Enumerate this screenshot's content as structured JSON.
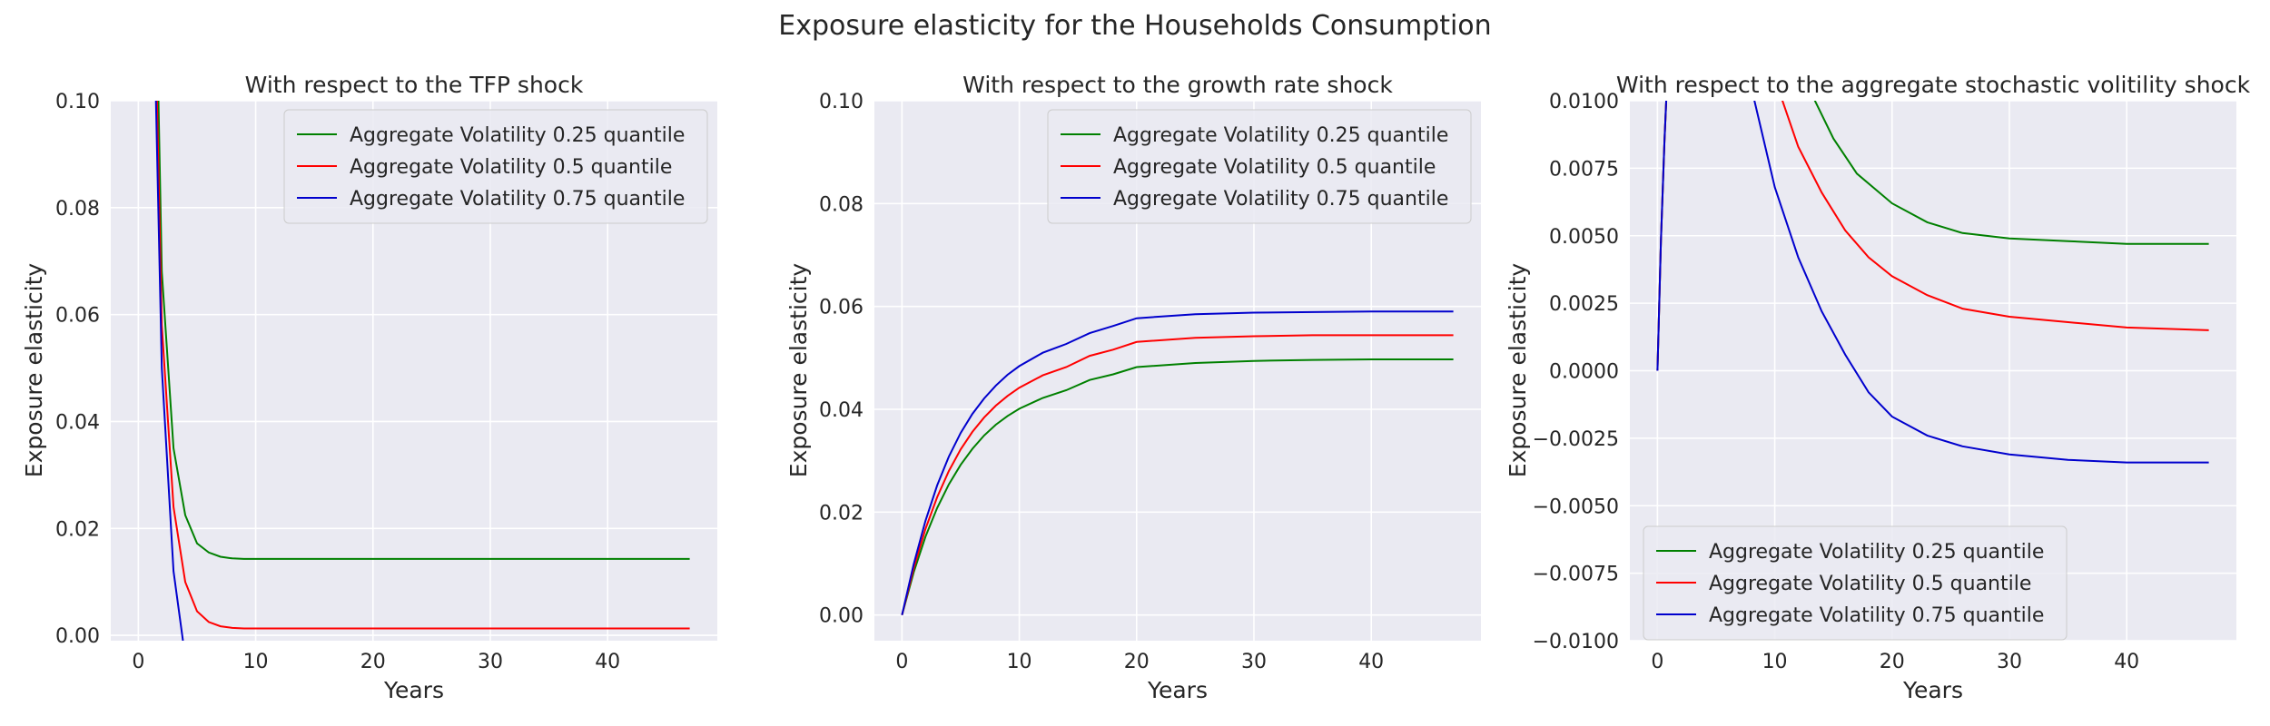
{
  "figure": {
    "title": "Exposure elasticity for the Households Consumption"
  },
  "chart_data": [
    {
      "type": "line",
      "title": "With respect to the TFP shock",
      "xlabel": "Years",
      "ylabel": "Exposure elasticity",
      "xlim": [
        -2.35,
        49.35
      ],
      "ylim": [
        -0.001,
        0.1
      ],
      "xticks": [
        0,
        10,
        20,
        30,
        40
      ],
      "yticks": [
        0.0,
        0.02,
        0.04,
        0.06,
        0.08,
        0.1
      ],
      "ytick_labels": [
        "0.00",
        "0.02",
        "0.04",
        "0.06",
        "0.08",
        "0.10"
      ],
      "grid": true,
      "legend": "top-right",
      "series": [
        {
          "name": "Aggregate Volatility 0.25 quantile",
          "color": "#008000",
          "x": [
            1,
            2,
            3,
            4,
            5,
            6,
            7,
            8,
            9,
            10,
            15,
            20,
            30,
            40,
            47
          ],
          "y": [
            0.18,
            0.068,
            0.035,
            0.0225,
            0.0172,
            0.0155,
            0.0147,
            0.0144,
            0.0143,
            0.0143,
            0.0143,
            0.0143,
            0.0143,
            0.0143,
            0.0143
          ]
        },
        {
          "name": "Aggregate Volatility 0.5 quantile",
          "color": "#ff0000",
          "x": [
            1,
            2,
            3,
            4,
            5,
            6,
            7,
            8,
            9,
            10,
            15,
            20,
            30,
            40,
            47
          ],
          "y": [
            0.16,
            0.058,
            0.024,
            0.01,
            0.0045,
            0.0025,
            0.0017,
            0.0014,
            0.0013,
            0.0013,
            0.0013,
            0.0013,
            0.0013,
            0.0013,
            0.0013
          ]
        },
        {
          "name": "Aggregate Volatility 0.75 quantile",
          "color": "#0000cd",
          "x": [
            1,
            2,
            3,
            3.8
          ],
          "y": [
            0.15,
            0.05,
            0.012,
            -0.001
          ]
        }
      ]
    },
    {
      "type": "line",
      "title": "With respect to the growth rate shock",
      "xlabel": "Years",
      "ylabel": "Exposure elasticity",
      "xlim": [
        -2.35,
        49.35
      ],
      "ylim": [
        -0.005,
        0.1
      ],
      "xticks": [
        0,
        10,
        20,
        30,
        40
      ],
      "yticks": [
        0.0,
        0.02,
        0.04,
        0.06,
        0.08,
        0.1
      ],
      "ytick_labels": [
        "0.00",
        "0.02",
        "0.04",
        "0.06",
        "0.08",
        "0.10"
      ],
      "grid": true,
      "legend": "top-right",
      "series": [
        {
          "name": "Aggregate Volatility 0.25 quantile",
          "color": "#008000",
          "x": [
            0,
            1,
            2,
            3,
            4,
            5,
            6,
            7,
            8,
            9,
            10,
            12,
            14,
            16,
            18,
            20,
            25,
            30,
            35,
            40,
            47
          ],
          "y": [
            0,
            0.0083,
            0.0152,
            0.0208,
            0.0254,
            0.0292,
            0.0323,
            0.0349,
            0.037,
            0.0387,
            0.0401,
            0.0422,
            0.0437,
            0.0457,
            0.0468,
            0.0482,
            0.049,
            0.0494,
            0.0496,
            0.0497,
            0.0497
          ]
        },
        {
          "name": "Aggregate Volatility 0.5 quantile",
          "color": "#ff0000",
          "x": [
            0,
            1,
            2,
            3,
            4,
            5,
            6,
            7,
            8,
            9,
            10,
            12,
            14,
            16,
            18,
            20,
            25,
            30,
            35,
            40,
            47
          ],
          "y": [
            0,
            0.0091,
            0.0167,
            0.0229,
            0.028,
            0.0322,
            0.0356,
            0.0384,
            0.0407,
            0.0426,
            0.0442,
            0.0466,
            0.0482,
            0.0504,
            0.0516,
            0.0531,
            0.0539,
            0.0542,
            0.0544,
            0.0544,
            0.0544
          ]
        },
        {
          "name": "Aggregate Volatility 0.75 quantile",
          "color": "#0000cd",
          "x": [
            0,
            1,
            2,
            3,
            4,
            5,
            6,
            7,
            8,
            9,
            10,
            12,
            14,
            16,
            18,
            20,
            25,
            30,
            35,
            40,
            47
          ],
          "y": [
            0,
            0.0099,
            0.0183,
            0.0252,
            0.0308,
            0.0354,
            0.0391,
            0.0421,
            0.0446,
            0.0467,
            0.0484,
            0.051,
            0.0527,
            0.0548,
            0.0562,
            0.0577,
            0.0585,
            0.0588,
            0.0589,
            0.059,
            0.059
          ]
        }
      ]
    },
    {
      "type": "line",
      "title": "With respect to the aggregate stochastic volitility shock",
      "xlabel": "Years",
      "ylabel": "Exposure elasticity",
      "xlim": [
        -2.35,
        49.35
      ],
      "ylim": [
        -0.01,
        0.01
      ],
      "xticks": [
        0,
        10,
        20,
        30,
        40
      ],
      "yticks": [
        -0.01,
        -0.0075,
        -0.005,
        -0.0025,
        0.0,
        0.0025,
        0.005,
        0.0075,
        0.01
      ],
      "ytick_labels": [
        "−0.0100",
        "−0.0075",
        "−0.0050",
        "−0.0025",
        "0.0000",
        "0.0025",
        "0.0050",
        "0.0075",
        "0.0100"
      ],
      "grid": true,
      "legend": "bottom-left",
      "series": [
        {
          "name": "Aggregate Volatility 0.25 quantile",
          "color": "#008000",
          "x": [
            0,
            0.3,
            0.6,
            0.9,
            13.2,
            15,
            17,
            20,
            23,
            26,
            30,
            35,
            40,
            47
          ],
          "y": [
            0,
            0.0048,
            0.0085,
            0.0115,
            0.0102,
            0.0086,
            0.0073,
            0.0062,
            0.0055,
            0.0051,
            0.0049,
            0.0048,
            0.0047,
            0.0047
          ]
        },
        {
          "name": "Aggregate Volatility 0.5 quantile",
          "color": "#ff0000",
          "x": [
            0,
            0.3,
            0.6,
            0.9,
            10.5,
            12,
            14,
            16,
            18,
            20,
            23,
            26,
            30,
            35,
            40,
            47
          ],
          "y": [
            0,
            0.0048,
            0.0085,
            0.0115,
            0.0102,
            0.0083,
            0.0066,
            0.0052,
            0.0042,
            0.0035,
            0.0028,
            0.0023,
            0.002,
            0.0018,
            0.0016,
            0.0015
          ]
        },
        {
          "name": "Aggregate Volatility 0.75 quantile",
          "color": "#0000cd",
          "x": [
            0,
            0.3,
            0.6,
            0.9,
            8,
            10,
            12,
            14,
            16,
            18,
            20,
            23,
            26,
            30,
            35,
            40,
            47
          ],
          "y": [
            0,
            0.0048,
            0.0085,
            0.0115,
            0.0105,
            0.0068,
            0.0042,
            0.0022,
            0.0006,
            -0.0008,
            -0.0017,
            -0.0024,
            -0.0028,
            -0.0031,
            -0.0033,
            -0.0034,
            -0.0034
          ]
        }
      ]
    }
  ]
}
